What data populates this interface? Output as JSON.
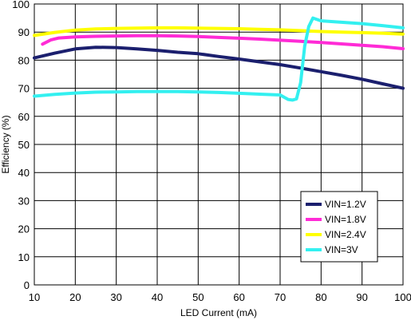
{
  "chart_data": {
    "type": "line",
    "title": "",
    "xlabel": "LED Current (mA)",
    "ylabel": "Efficiency (%)",
    "xlim": [
      10,
      100
    ],
    "ylim": [
      0,
      100
    ],
    "xticks": [
      "10",
      "20",
      "30",
      "40",
      "50",
      "60",
      "70",
      "80",
      "90",
      "100"
    ],
    "yticks": [
      "0",
      "10",
      "20",
      "30",
      "40",
      "50",
      "60",
      "70",
      "80",
      "90",
      "100"
    ],
    "grid": true,
    "legend_placement": "bottom-right",
    "series": [
      {
        "name": "VIN=1.2V",
        "color": "#1b1f6e",
        "x": [
          10,
          15,
          20,
          25,
          30,
          35,
          40,
          45,
          50,
          55,
          60,
          65,
          70,
          75,
          80,
          85,
          90,
          95,
          100
        ],
        "y": [
          80.8,
          82.5,
          84.0,
          84.6,
          84.5,
          84.0,
          83.5,
          82.8,
          82.3,
          81.3,
          80.4,
          79.4,
          78.4,
          77.2,
          75.9,
          74.6,
          73.2,
          71.6,
          70.0
        ]
      },
      {
        "name": "VIN=1.8V",
        "color": "#ff2bd6",
        "x": [
          12,
          14,
          16,
          20,
          25,
          30,
          35,
          40,
          45,
          50,
          55,
          60,
          65,
          70,
          75,
          80,
          85,
          90,
          95,
          100
        ],
        "y": [
          85.7,
          87.2,
          87.9,
          88.3,
          88.5,
          88.6,
          88.7,
          88.7,
          88.6,
          88.4,
          88.1,
          87.8,
          87.5,
          87.1,
          86.7,
          86.3,
          85.8,
          85.3,
          84.8,
          84.1
        ]
      },
      {
        "name": "VIN=2.4V",
        "color": "#ffff00",
        "x": [
          10,
          15,
          20,
          25,
          30,
          35,
          40,
          45,
          50,
          55,
          60,
          65,
          70,
          75,
          80,
          85,
          90,
          95,
          100
        ],
        "y": [
          88.8,
          89.9,
          90.7,
          91.1,
          91.3,
          91.4,
          91.5,
          91.5,
          91.4,
          91.3,
          91.2,
          91.0,
          90.8,
          90.5,
          90.2,
          90.0,
          89.8,
          89.6,
          89.3
        ]
      },
      {
        "name": "VIN=3V",
        "color": "#33f0f0",
        "x": [
          10,
          15,
          20,
          25,
          30,
          35,
          40,
          45,
          50,
          55,
          60,
          65,
          70,
          71,
          72,
          73,
          74,
          75,
          76,
          77,
          78,
          80,
          85,
          90,
          95,
          100
        ],
        "y": [
          67.2,
          67.8,
          68.3,
          68.6,
          68.7,
          68.8,
          68.8,
          68.8,
          68.7,
          68.5,
          68.2,
          67.9,
          67.6,
          66.8,
          66.0,
          65.8,
          66.2,
          72.0,
          85.0,
          92.0,
          95.0,
          94.0,
          93.5,
          93.0,
          92.3,
          91.5
        ]
      }
    ]
  }
}
